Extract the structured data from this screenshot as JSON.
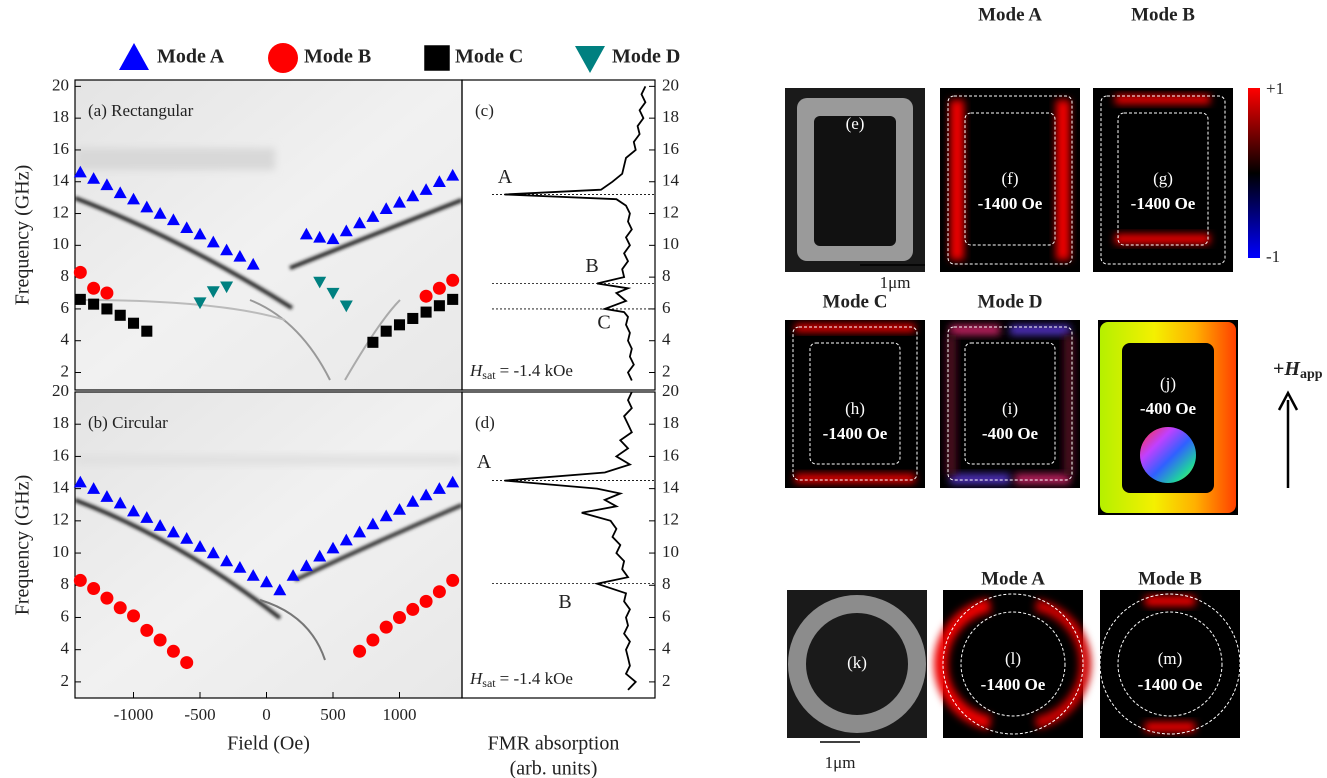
{
  "chart_data": [
    {
      "type": "scatter",
      "title": "(a) Rectangular",
      "ylabel": "Frequency (GHz)",
      "xlim": [
        -1440,
        1470
      ],
      "ylim": [
        0.9,
        20.4
      ],
      "yticks": [
        2,
        4,
        6,
        8,
        10,
        12,
        14,
        16,
        18,
        20
      ],
      "series": [
        {
          "name": "Mode A",
          "color": "#0000ff",
          "marker": "triangle-up",
          "x": [
            -1400,
            -1300,
            -1200,
            -1100,
            -1000,
            -900,
            -800,
            -700,
            -600,
            -500,
            -400,
            -300,
            -200,
            -100,
            300,
            400,
            500,
            600,
            700,
            800,
            900,
            1000,
            1100,
            1200,
            1300,
            1400
          ],
          "values": [
            14.6,
            14.2,
            13.8,
            13.3,
            12.9,
            12.4,
            12.0,
            11.6,
            11.1,
            10.7,
            10.2,
            9.7,
            9.3,
            8.8,
            10.7,
            10.5,
            10.4,
            10.9,
            11.4,
            11.8,
            12.3,
            12.7,
            13.1,
            13.5,
            14.0,
            14.4
          ]
        },
        {
          "name": "Mode B",
          "color": "#ff0000",
          "marker": "circle",
          "x": [
            -1400,
            -1300,
            -1200,
            1200,
            1300,
            1400
          ],
          "values": [
            8.3,
            7.3,
            7.0,
            6.8,
            7.3,
            7.8
          ]
        },
        {
          "name": "Mode C",
          "color": "#000000",
          "marker": "square",
          "x": [
            -1400,
            -1300,
            -1200,
            -1100,
            -1000,
            -900,
            800,
            900,
            1000,
            1100,
            1200,
            1300,
            1400
          ],
          "values": [
            6.6,
            6.3,
            6.0,
            5.6,
            5.1,
            4.6,
            3.9,
            4.6,
            5.0,
            5.4,
            5.8,
            6.2,
            6.6
          ]
        },
        {
          "name": "Mode D",
          "color": "#008080",
          "marker": "triangle-down",
          "x": [
            -500,
            -400,
            -300,
            400,
            500,
            600
          ],
          "values": [
            6.4,
            7.1,
            7.4,
            7.7,
            7.0,
            6.2
          ]
        }
      ]
    },
    {
      "type": "scatter",
      "title": "(b) Circular",
      "ylabel": "Frequency (GHz)",
      "xlabel": "Field (Oe)",
      "xlim": [
        -1440,
        1470
      ],
      "ylim": [
        1,
        20
      ],
      "xticks": [
        -1000,
        -500,
        0,
        500,
        1000
      ],
      "yticks": [
        2,
        4,
        6,
        8,
        10,
        12,
        14,
        16,
        18,
        20
      ],
      "series": [
        {
          "name": "Mode A",
          "color": "#0000ff",
          "marker": "triangle-up",
          "x": [
            -1400,
            -1300,
            -1200,
            -1100,
            -1000,
            -900,
            -800,
            -700,
            -600,
            -500,
            -400,
            -300,
            -200,
            -100,
            0,
            100,
            200,
            300,
            400,
            500,
            600,
            700,
            800,
            900,
            1000,
            1100,
            1200,
            1300,
            1400
          ],
          "values": [
            14.4,
            14.0,
            13.5,
            13.1,
            12.6,
            12.2,
            11.7,
            11.3,
            10.9,
            10.4,
            10.0,
            9.5,
            9.1,
            8.6,
            8.2,
            7.7,
            8.6,
            9.2,
            9.8,
            10.3,
            10.8,
            11.3,
            11.8,
            12.3,
            12.7,
            13.2,
            13.6,
            14.0,
            14.4
          ]
        },
        {
          "name": "Mode B",
          "color": "#ff0000",
          "marker": "circle",
          "x": [
            -1400,
            -1300,
            -1200,
            -1100,
            -1000,
            -900,
            -800,
            -700,
            -600,
            700,
            800,
            900,
            1000,
            1100,
            1200,
            1300,
            1400
          ],
          "values": [
            8.3,
            7.8,
            7.2,
            6.6,
            6.1,
            5.2,
            4.6,
            3.9,
            3.2,
            3.9,
            4.6,
            5.4,
            6.0,
            6.5,
            7.0,
            7.6,
            8.3
          ]
        }
      ]
    },
    {
      "type": "line",
      "title": "(c)",
      "color": "#000000",
      "xlim": [
        0,
        1
      ],
      "ylim": [
        0.9,
        20.4
      ],
      "yticks": [
        2,
        4,
        6,
        8,
        10,
        12,
        14,
        16,
        18,
        20
      ],
      "x": [
        1.5,
        2,
        2.5,
        3,
        3.5,
        4,
        4.5,
        5,
        5.5,
        5.8,
        6.0,
        6.5,
        7,
        7.3,
        7.6,
        8,
        8.5,
        9,
        9.5,
        10,
        10.5,
        11,
        11.5,
        12,
        12.5,
        12.9,
        13.2,
        13.5,
        14,
        14.5,
        15,
        15.5,
        16,
        16.5,
        17,
        17.5,
        18,
        18.5,
        19,
        19.5,
        20
      ],
      "values": [
        0.88,
        0.86,
        0.89,
        0.87,
        0.88,
        0.86,
        0.87,
        0.85,
        0.86,
        0.84,
        0.74,
        0.85,
        0.8,
        0.86,
        0.7,
        0.84,
        0.83,
        0.86,
        0.84,
        0.87,
        0.85,
        0.88,
        0.86,
        0.87,
        0.85,
        0.8,
        0.22,
        0.72,
        0.78,
        0.83,
        0.84,
        0.85,
        0.9,
        0.89,
        0.92,
        0.91,
        0.94,
        0.92,
        0.95,
        0.93,
        0.95
      ],
      "annotations": [
        {
          "text": "A",
          "value": 13.2
        },
        {
          "text": "B",
          "value": 7.6
        },
        {
          "text": "C",
          "value": 6.0
        }
      ],
      "hsat": {
        "symbol": "H",
        "subscript": "sat",
        "text": "= -1.4 kOe"
      }
    },
    {
      "type": "line",
      "title": "(d)",
      "color": "#000000",
      "xlabel": [
        "FMR absorption",
        "(arb. units)"
      ],
      "xlim": [
        0,
        1
      ],
      "ylim": [
        1,
        20
      ],
      "yticks": [
        2,
        4,
        6,
        8,
        10,
        12,
        14,
        16,
        18,
        20
      ],
      "x": [
        1.5,
        2,
        2.5,
        3,
        3.5,
        4,
        4.5,
        5,
        5.5,
        6,
        6.5,
        7,
        7.5,
        8.1,
        8.5,
        9,
        9.5,
        10,
        10.5,
        11,
        11.5,
        12,
        12.5,
        12.9,
        13.3,
        13.7,
        14,
        14.5,
        15,
        15.5,
        16,
        16.5,
        17,
        17.5,
        18,
        18.5,
        19,
        19.5,
        20
      ],
      "values": [
        0.86,
        0.9,
        0.85,
        0.87,
        0.86,
        0.85,
        0.87,
        0.84,
        0.86,
        0.85,
        0.87,
        0.84,
        0.85,
        0.7,
        0.86,
        0.83,
        0.84,
        0.8,
        0.82,
        0.78,
        0.8,
        0.77,
        0.62,
        0.8,
        0.74,
        0.82,
        0.7,
        0.22,
        0.74,
        0.87,
        0.8,
        0.86,
        0.82,
        0.88,
        0.86,
        0.84,
        0.88,
        0.86,
        0.88
      ],
      "annotations": [
        {
          "text": "A",
          "value": 14.5
        },
        {
          "text": "B",
          "value": 8.1
        }
      ],
      "hsat": {
        "symbol": "H",
        "subscript": "sat",
        "text": "= -1.4 kOe"
      }
    }
  ],
  "images": [
    {
      "label": "(e)"
    },
    {
      "label": "(f)",
      "title": "Mode A",
      "field": "-1400 Oe"
    },
    {
      "label": "(g)",
      "title": "Mode B",
      "field": "-1400 Oe"
    },
    {
      "label": "(h)",
      "title": "Mode C",
      "field": "-1400 Oe"
    },
    {
      "label": "(i)",
      "title": "Mode D",
      "field": "-400 Oe"
    },
    {
      "label": "(j)",
      "field": "-400 Oe"
    },
    {
      "label": "(k)"
    },
    {
      "label": "(l)",
      "title": "Mode A",
      "field": "-1400 Oe"
    },
    {
      "label": "(m)",
      "title": "Mode B",
      "field": "-1400 Oe"
    }
  ],
  "colorbar": {
    "top_label": "+1",
    "bottom_label": "-1"
  },
  "scale_bars": [
    "1μm",
    "1μm"
  ],
  "field_arrow": {
    "prefix": "+",
    "symbol": "H",
    "subscript": "app"
  }
}
